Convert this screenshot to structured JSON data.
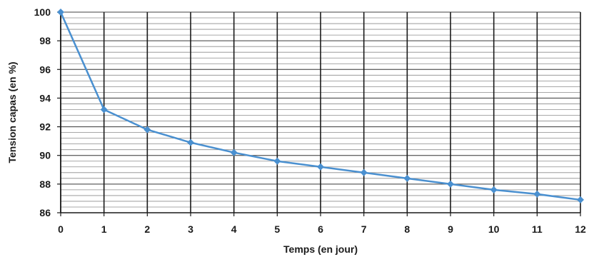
{
  "chart_data": {
    "type": "line",
    "title": "",
    "xlabel": "Temps (en jour)",
    "ylabel": "Tension capas (en %)",
    "x": [
      0,
      1,
      2,
      3,
      4,
      5,
      6,
      7,
      8,
      9,
      10,
      11,
      12
    ],
    "series": [
      {
        "name": "",
        "values": [
          100,
          93.2,
          91.8,
          90.9,
          90.2,
          89.6,
          89.2,
          88.8,
          88.4,
          88.0,
          87.6,
          87.3,
          86.9
        ],
        "color": "#4a90d0"
      }
    ],
    "xlim": [
      0,
      12
    ],
    "ylim": [
      86,
      100
    ],
    "x_ticks": [
      "0",
      "1",
      "2",
      "3",
      "4",
      "5",
      "6",
      "7",
      "8",
      "9",
      "10",
      "11",
      "12"
    ],
    "y_ticks": [
      "86",
      "88",
      "90",
      "92",
      "94",
      "96",
      "98",
      "100"
    ],
    "grid": true,
    "legend": "none"
  }
}
